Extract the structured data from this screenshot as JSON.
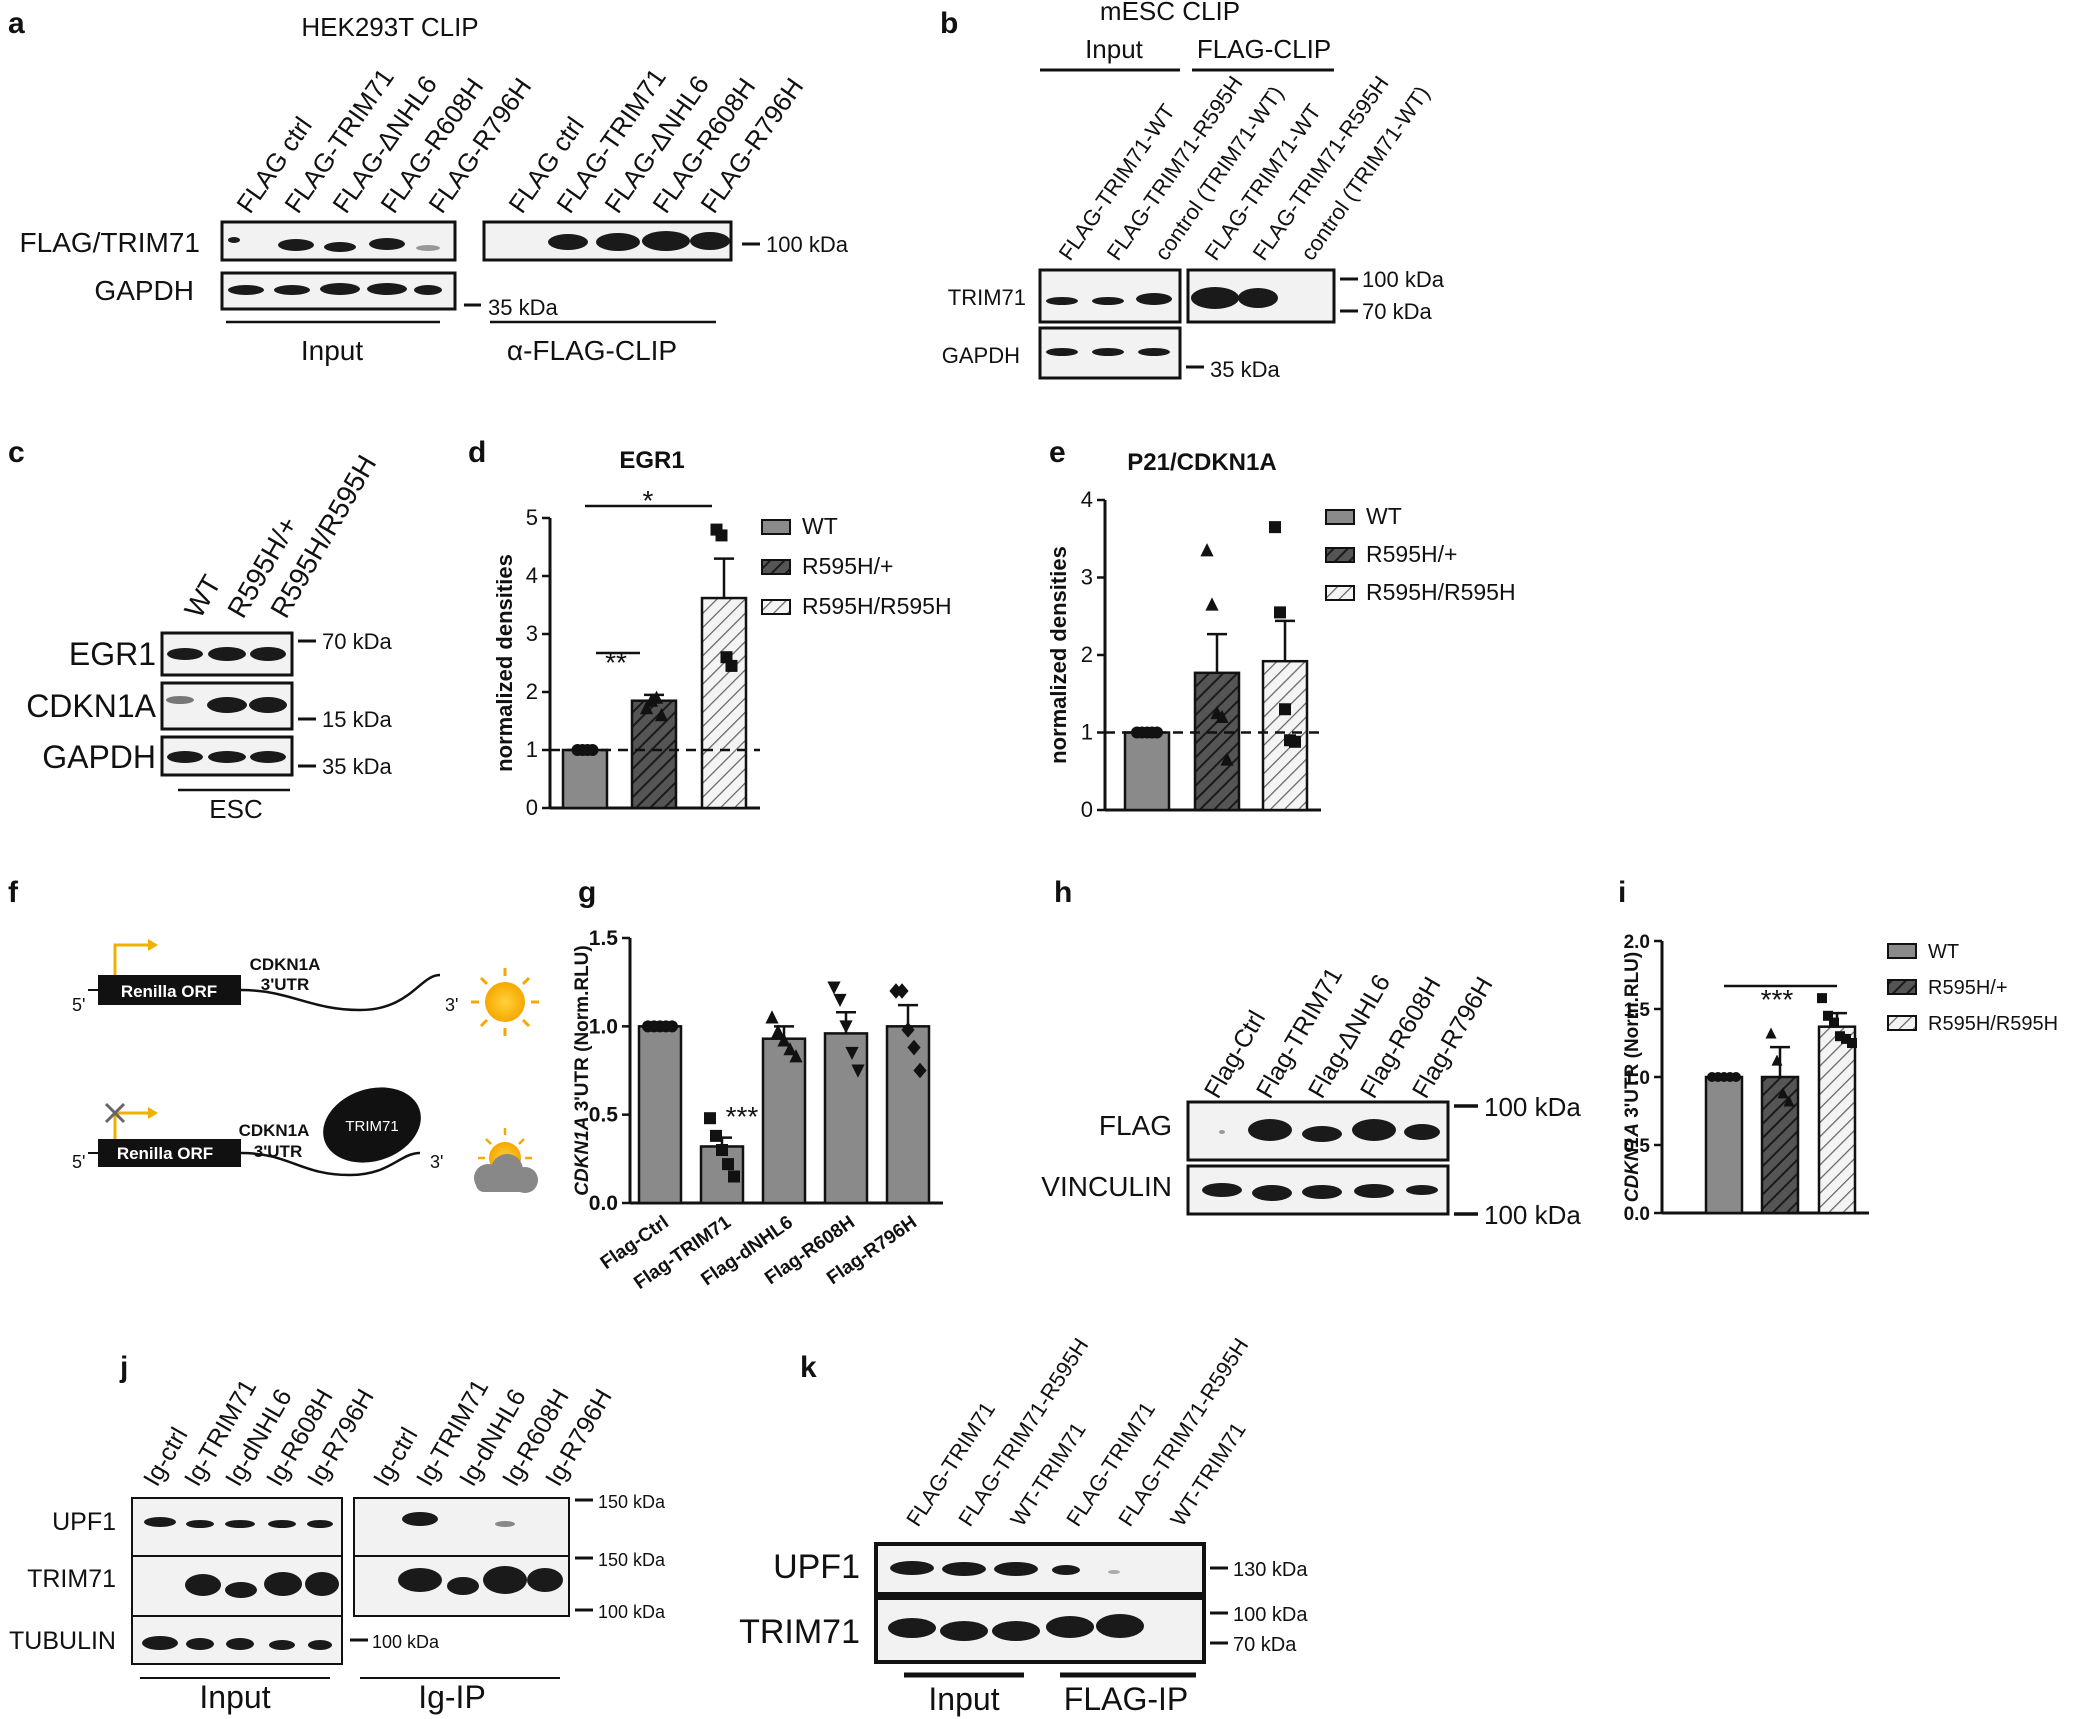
{
  "panel_letters": [
    "a",
    "b",
    "c",
    "d",
    "e",
    "f",
    "g",
    "h",
    "i",
    "j",
    "k"
  ],
  "a": {
    "title": "HEK293T CLIP",
    "lanes": [
      "FLAG ctrl",
      "FLAG-TRIM71",
      "FLAG-ΔNHL6",
      "FLAG-R608H",
      "FLAG-R796H"
    ],
    "rows": [
      "FLAG/TRIM71",
      "GAPDH"
    ],
    "markers": [
      "100 kDa",
      "35 kDa"
    ],
    "groups": [
      "Input",
      "α-FLAG-CLIP"
    ]
  },
  "b": {
    "title": "mESC CLIP",
    "headers": [
      "Input",
      "FLAG-CLIP"
    ],
    "lanes": [
      "FLAG-TRIM71-WT",
      "FLAG-TRIM71-R595H",
      "control (TRIM71-WT)",
      "FLAG-TRIM71-WT",
      "FLAG-TRIM71-R595H",
      "control (TRIM71-WT)"
    ],
    "rows": [
      "TRIM71",
      "GAPDH"
    ],
    "markers": [
      "100 kDa",
      "70 kDa",
      "35 kDa"
    ]
  },
  "c": {
    "lanes": [
      "WT",
      "R595H/+",
      "R595H/R595H"
    ],
    "rows": [
      "EGR1",
      "CDKN1A",
      "GAPDH"
    ],
    "markers": [
      "70 kDa",
      "15 kDa",
      "35 kDa"
    ],
    "group": "ESC"
  },
  "f": {
    "five_prime": "5'",
    "three_prime": "3'",
    "orf": "Renilla ORF",
    "utr_line1": "CDKN1A",
    "utr_line2": "3'UTR",
    "protein": "TRIM71"
  },
  "h": {
    "lanes": [
      "Flag-Ctrl",
      "Flag-TRIM71",
      "Flag-ΔNHL6",
      "Flag-R608H",
      "Flag-R796H"
    ],
    "rows": [
      "FLAG",
      "VINCULIN"
    ],
    "markers": [
      "100 kDa",
      "100 kDa"
    ]
  },
  "j": {
    "lanes": [
      "Ig-ctrl",
      "Ig-TRIM71",
      "Ig-dNHL6",
      "Ig-R608H",
      "Ig-R796H",
      "Ig-ctrl",
      "Ig-TRIM71",
      "Ig-dNHL6",
      "Ig-R608H",
      "Ig-R796H"
    ],
    "rows": [
      "UPF1",
      "TRIM71",
      "TUBULIN"
    ],
    "markers": [
      "150 kDa",
      "150 kDa",
      "100 kDa",
      "100 kDa"
    ],
    "groups": [
      "Input",
      "Ig-IP"
    ]
  },
  "k": {
    "lanes": [
      "FLAG-TRIM71",
      "FLAG-TRIM71-R595H",
      "WT-TRIM71",
      "FLAG-TRIM71",
      "FLAG-TRIM71-R595H",
      "WT-TRIM71"
    ],
    "rows": [
      "UPF1",
      "TRIM71"
    ],
    "markers": [
      "130 kDa",
      "100 kDa",
      "70 kDa"
    ],
    "groups": [
      "Input",
      "FLAG-IP"
    ]
  },
  "chart_data": [
    {
      "panel": "d",
      "type": "bar",
      "title": "EGR1",
      "ylabel": "normalized densities",
      "ylim": [
        0,
        5
      ],
      "yticks": [
        0,
        1,
        2,
        3,
        4,
        5
      ],
      "categories": [
        "WT",
        "R595H/+",
        "R595H/R595H"
      ],
      "values": [
        1.0,
        1.85,
        3.62
      ],
      "errors": [
        0,
        0.1,
        0.68
      ],
      "points": [
        [
          1,
          1,
          1,
          1
        ],
        [
          1.72,
          1.85,
          1.9,
          1.6
        ],
        [
          4.8,
          4.7,
          2.6,
          2.45
        ]
      ],
      "legend": [
        "WT",
        "R595H/+",
        "R595H/R595H"
      ],
      "significance": [
        "**",
        "*"
      ],
      "reference_line": 1
    },
    {
      "panel": "e",
      "type": "bar",
      "title": "P21/CDKN1A",
      "ylabel": "normalized densities",
      "ylim": [
        0,
        4
      ],
      "yticks": [
        0,
        1,
        2,
        3,
        4
      ],
      "categories": [
        "WT",
        "R595H/+",
        "R595H/R595H"
      ],
      "values": [
        1.0,
        1.77,
        1.92
      ],
      "errors": [
        0,
        0.5,
        0.52
      ],
      "points": [
        [
          1,
          1,
          1,
          1,
          1
        ],
        [
          3.35,
          2.65,
          1.25,
          1.2,
          0.65
        ],
        [
          3.65,
          2.55,
          1.3,
          0.9,
          0.88
        ]
      ],
      "legend": [
        "WT",
        "R595H/+",
        "R595H/R595H"
      ],
      "reference_line": 1
    },
    {
      "panel": "g",
      "type": "bar",
      "title": "",
      "ylabel_italic": "CDKN1A",
      "ylabel_rest": " 3'UTR (Norm.RLU)",
      "ylim": [
        0,
        1.5
      ],
      "yticks": [
        0.0,
        0.5,
        1.0,
        1.5
      ],
      "categories": [
        "Flag-Ctrl",
        "Flag-TRIM71",
        "Flag-dNHL6",
        "Flag-R608H",
        "Flag-R796H"
      ],
      "values": [
        1.0,
        0.32,
        0.93,
        0.96,
        1.0
      ],
      "errors": [
        0,
        0.05,
        0.07,
        0.12,
        0.12
      ],
      "points": [
        [
          1,
          1,
          1,
          1,
          1
        ],
        [
          0.48,
          0.38,
          0.3,
          0.22,
          0.15
        ],
        [
          1.05,
          0.97,
          0.92,
          0.87,
          0.83
        ],
        [
          1.22,
          1.15,
          1.0,
          0.85,
          0.75
        ],
        [
          1.2,
          1.2,
          0.98,
          0.88,
          0.75
        ]
      ],
      "significance": [
        "***"
      ]
    },
    {
      "panel": "i",
      "type": "bar",
      "title": "",
      "ylabel_italic": "CDKN1A",
      "ylabel_rest": " 3'UTR (Norm.RLU)",
      "ylim": [
        0,
        2.0
      ],
      "yticks": [
        0.0,
        0.5,
        1.0,
        1.5,
        2.0
      ],
      "categories": [
        "WT",
        "R595H/+",
        "R595H/R595H"
      ],
      "values": [
        1.0,
        1.0,
        1.37
      ],
      "errors": [
        0,
        0.22,
        0.1
      ],
      "points": [
        [
          1,
          1,
          1,
          1,
          1
        ],
        [
          1.32,
          1.12,
          0.88,
          0.82
        ],
        [
          1.58,
          1.45,
          1.4,
          1.3,
          1.28,
          1.25
        ]
      ],
      "legend": [
        "WT",
        "R595H/+",
        "R595H/R595H"
      ],
      "significance": [
        "***"
      ]
    }
  ]
}
